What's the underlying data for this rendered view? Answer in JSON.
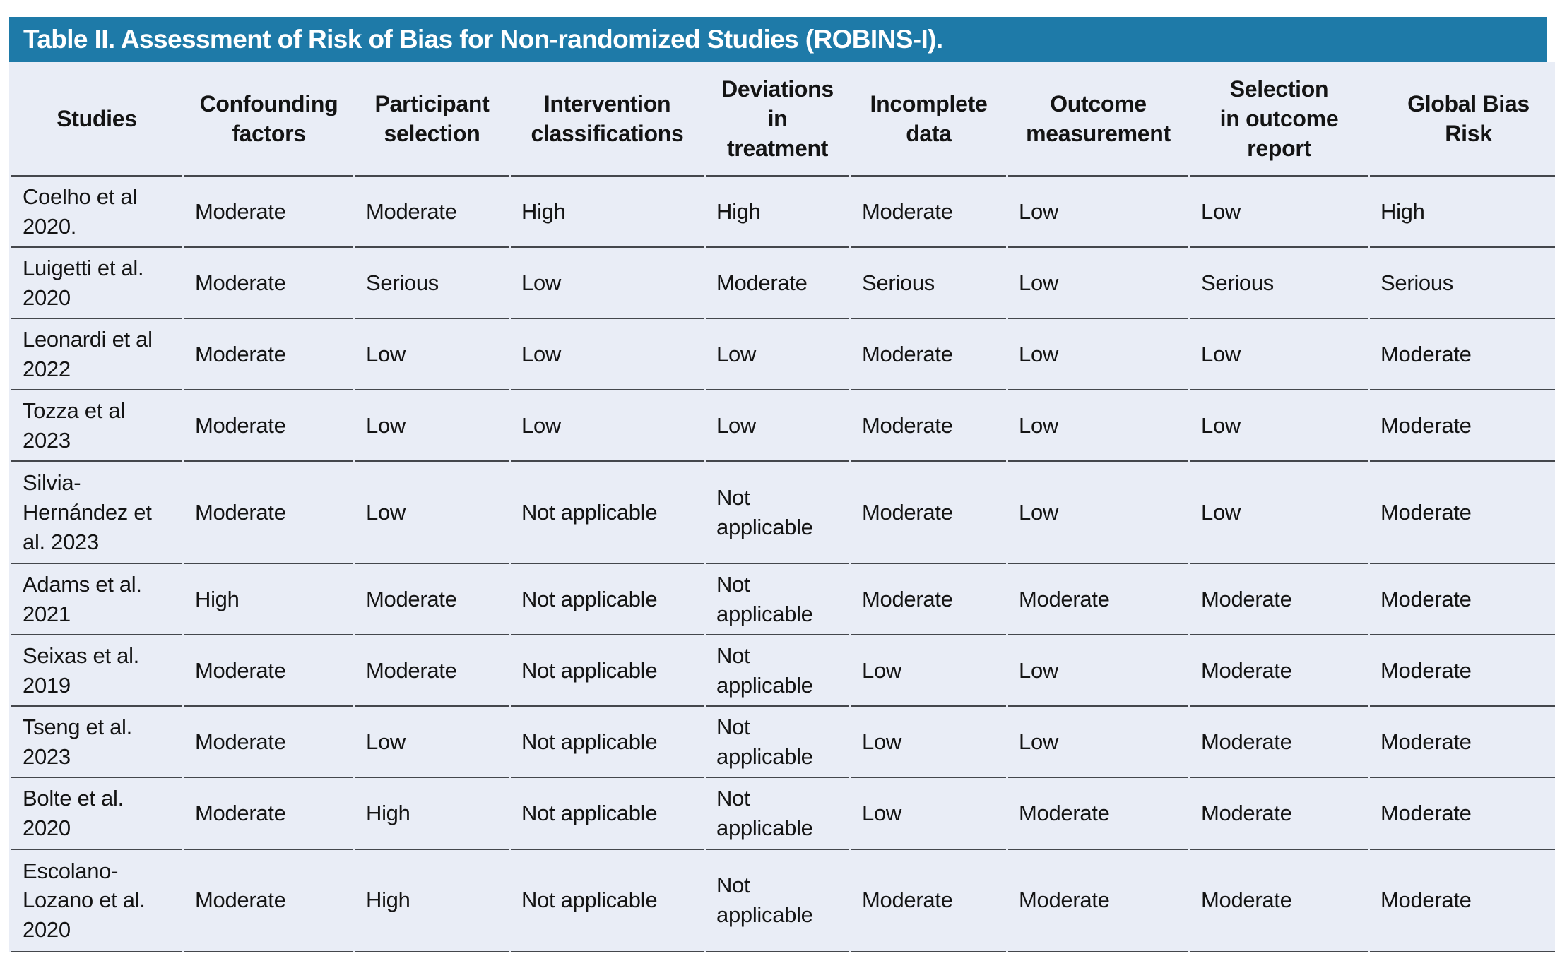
{
  "title": "Table II. Assessment of Risk of Bias for Non-randomized Studies (ROBINS-I).",
  "colors": {
    "title_bar_bg": "#1e7aa8",
    "title_text": "#ffffff",
    "table_bg": "#e9edf6",
    "row_line": "#44474c",
    "cell_text": "#141414"
  },
  "table": {
    "columns": [
      "Studies",
      "Confounding\nfactors",
      "Participant\nselection",
      "Intervention\nclassifications",
      "Deviations\nin\ntreatment",
      "Incomplete\ndata",
      "Outcome\nmeasurement",
      "Selection\nin outcome\nreport",
      "Global Bias\nRisk"
    ],
    "rows": [
      {
        "study": "Coelho et al 2020.",
        "values": [
          "Moderate",
          "Moderate",
          "High",
          "High",
          "Moderate",
          "Low",
          "Low",
          "High"
        ]
      },
      {
        "study": "Luigetti et al. 2020",
        "values": [
          "Moderate",
          "Serious",
          "Low",
          "Moderate",
          "Serious",
          "Low",
          "Serious",
          "Serious"
        ]
      },
      {
        "study": "Leonardi et al 2022",
        "values": [
          "Moderate",
          "Low",
          "Low",
          "Low",
          "Moderate",
          "Low",
          "Low",
          "Moderate"
        ]
      },
      {
        "study": "Tozza et al 2023",
        "values": [
          "Moderate",
          "Low",
          "Low",
          "Low",
          "Moderate",
          "Low",
          "Low",
          "Moderate"
        ]
      },
      {
        "study": "Silvia-Hernández et al. 2023",
        "values": [
          "Moderate",
          "Low",
          "Not applicable",
          "Not applicable",
          "Moderate",
          "Low",
          "Low",
          "Moderate"
        ]
      },
      {
        "study": "Adams et al. 2021",
        "values": [
          "High",
          "Moderate",
          "Not applicable",
          "Not applicable",
          "Moderate",
          "Moderate",
          "Moderate",
          "Moderate"
        ]
      },
      {
        "study": "Seixas et al. 2019",
        "values": [
          "Moderate",
          "Moderate",
          "Not applicable",
          "Not applicable",
          "Low",
          "Low",
          "Moderate",
          "Moderate"
        ]
      },
      {
        "study": "Tseng et al. 2023",
        "values": [
          "Moderate",
          "Low",
          "Not applicable",
          "Not applicable",
          "Low",
          "Low",
          "Moderate",
          "Moderate"
        ]
      },
      {
        "study": "Bolte et al. 2020",
        "values": [
          "Moderate",
          "High",
          "Not applicable",
          "Not applicable",
          "Low",
          "Moderate",
          "Moderate",
          "Moderate"
        ]
      },
      {
        "study": "Escolano-Lozano et al. 2020",
        "values": [
          "Moderate",
          "High",
          "Not applicable",
          "Not applicable",
          "Moderate",
          "Moderate",
          "Moderate",
          "Moderate"
        ]
      }
    ]
  }
}
